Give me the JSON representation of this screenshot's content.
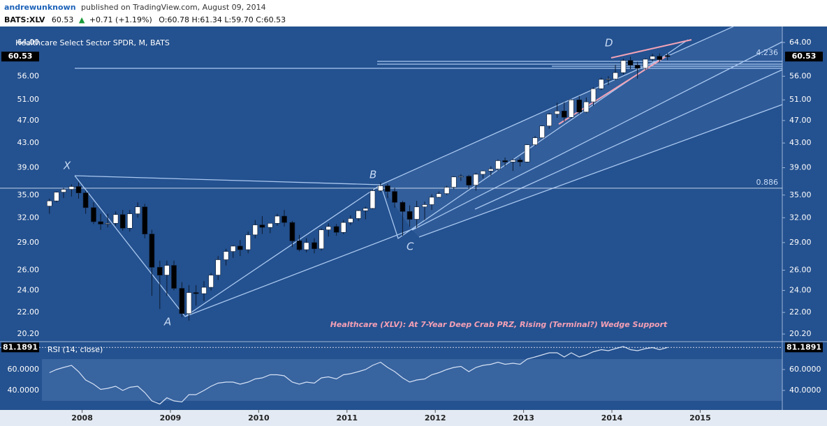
{
  "header": {
    "author": "andrewunknown",
    "published": "published on TradingView.com, August 09, 2014",
    "symbol": "BATS:XLV",
    "last": "60.53",
    "arrow": "▲",
    "change": "+0.71 (+1.19%)",
    "ohlc": "O:60.78 H:61.34 L:59.70 C:60.53"
  },
  "chart_data": [
    {
      "type": "candlestick",
      "title": "Healthcare Select Sector SPDR, M, BATS",
      "annotation": "Healthcare (XLV): At 7-Year Deep Crab PRZ, Rising (Terminal?) Wedge Support",
      "pattern_labels": [
        "X",
        "A",
        "B",
        "C",
        "D"
      ],
      "log_scale": true,
      "up_color": "#ffffff",
      "down_color": "#000000",
      "xlim": [
        2007.07,
        2015.93
      ],
      "xticks": [
        2008,
        2009,
        2010,
        2011,
        2012,
        2013,
        2014,
        2015
      ],
      "ylim": [
        19.6,
        67.8
      ],
      "yticks": [
        {
          "value": 64,
          "label": "64.00"
        },
        {
          "value": 56,
          "label": "56.00"
        },
        {
          "value": 51,
          "label": "51.00"
        },
        {
          "value": 47,
          "label": "47.00"
        },
        {
          "value": 43,
          "label": "43.00"
        },
        {
          "value": 39,
          "label": "39.00"
        },
        {
          "value": 35,
          "label": "35.00"
        },
        {
          "value": 32,
          "label": "32.00"
        },
        {
          "value": 29,
          "label": "29.00"
        },
        {
          "value": 26,
          "label": "26.00"
        },
        {
          "value": 24,
          "label": "24.00"
        },
        {
          "value": 22,
          "label": "22.00"
        },
        {
          "value": 20.2,
          "label": "20.20"
        }
      ],
      "fib_levels": [
        {
          "value": 59.4,
          "label": "4.236"
        },
        {
          "value": 35.96,
          "label": "0.886"
        }
      ],
      "x": [
        2007.63,
        2007.71,
        2007.79,
        2007.88,
        2007.96,
        2008.04,
        2008.13,
        2008.21,
        2008.29,
        2008.38,
        2008.46,
        2008.54,
        2008.63,
        2008.71,
        2008.79,
        2008.88,
        2008.96,
        2009.04,
        2009.13,
        2009.21,
        2009.29,
        2009.38,
        2009.46,
        2009.54,
        2009.63,
        2009.71,
        2009.79,
        2009.88,
        2009.96,
        2010.04,
        2010.13,
        2010.21,
        2010.29,
        2010.38,
        2010.46,
        2010.54,
        2010.63,
        2010.71,
        2010.79,
        2010.88,
        2010.96,
        2011.04,
        2011.13,
        2011.21,
        2011.29,
        2011.38,
        2011.46,
        2011.54,
        2011.63,
        2011.71,
        2011.79,
        2011.88,
        2011.96,
        2012.04,
        2012.13,
        2012.21,
        2012.29,
        2012.38,
        2012.46,
        2012.54,
        2012.63,
        2012.71,
        2012.79,
        2012.88,
        2012.96,
        2013.04,
        2013.13,
        2013.21,
        2013.29,
        2013.38,
        2013.46,
        2013.54,
        2013.63,
        2013.71,
        2013.79,
        2013.88,
        2013.96,
        2014.04,
        2014.13,
        2014.21,
        2014.29,
        2014.38,
        2014.46,
        2014.54,
        2014.63
      ],
      "open": [
        33.5,
        34.2,
        35.4,
        35.8,
        36.2,
        35.3,
        33.3,
        31.5,
        31.2,
        31.3,
        32.4,
        30.7,
        32.5,
        33.4,
        30,
        26.3,
        25.5,
        26.5,
        24.2,
        21.9,
        23.8,
        23.7,
        24.3,
        25.5,
        27.1,
        28,
        28.6,
        28.2,
        29.9,
        31.1,
        30.8,
        31.3,
        32.2,
        31.4,
        29.2,
        28.2,
        29,
        28.3,
        30.5,
        30.9,
        30.2,
        31.4,
        31.9,
        32.9,
        33.2,
        35.6,
        36.3,
        35.5,
        34,
        32.8,
        31.8,
        33.4,
        33.7,
        34.7,
        35.2,
        36.1,
        37.6,
        37.7,
        36.4,
        38,
        38.5,
        38.8,
        40.1,
        39.9,
        40.2,
        39.9,
        42.7,
        43.9,
        46,
        48.2,
        48.8,
        47.6,
        51,
        48.6,
        50.6,
        53.3,
        55.3,
        55.4,
        56.8,
        59.6,
        58.5,
        57.8,
        59.9,
        60.6,
        60.78
      ],
      "high": [
        34.5,
        35.5,
        36,
        36.5,
        36.8,
        35.6,
        34,
        32.5,
        32.5,
        32.8,
        33,
        33,
        34,
        33.8,
        30.5,
        27,
        27,
        27,
        24.8,
        24.5,
        24.5,
        24.9,
        25.7,
        27.5,
        28.3,
        28.7,
        29.3,
        30.3,
        31.7,
        32.2,
        31.3,
        32.5,
        33,
        31.6,
        29.9,
        29.5,
        29.5,
        30.7,
        31.3,
        31.2,
        31.7,
        32.3,
        33,
        33.4,
        35.8,
        36.8,
        36.6,
        36,
        34.2,
        33.6,
        34.2,
        34.1,
        35.1,
        35.5,
        36.3,
        37.7,
        38,
        37.9,
        38.2,
        38.6,
        39.2,
        40.3,
        40.6,
        40.4,
        40.6,
        42.8,
        44.2,
        46.1,
        48.4,
        50.4,
        50.5,
        51.2,
        51.8,
        51.5,
        53.6,
        55.7,
        56,
        58.6,
        60,
        60.5,
        59.3,
        60.1,
        61.2,
        61.3,
        61.34
      ],
      "low": [
        32.5,
        34,
        34.6,
        34.8,
        34.5,
        32.5,
        31.2,
        30.5,
        30.8,
        31,
        30.4,
        30.3,
        32,
        29.5,
        23.5,
        22.3,
        23.5,
        24,
        21.6,
        21.3,
        22.6,
        23,
        24,
        25,
        26.5,
        27.3,
        27.5,
        27.8,
        29.5,
        30,
        30.1,
        31,
        30.9,
        28.5,
        28,
        27.9,
        27.8,
        28.1,
        29.7,
        29.8,
        30,
        31.1,
        31.6,
        31.8,
        33.1,
        35.4,
        34.6,
        33.3,
        29.8,
        30.9,
        30.7,
        31.7,
        33,
        34.6,
        35,
        35.8,
        37,
        35.8,
        35.6,
        37.4,
        37.8,
        38.5,
        39.2,
        38.5,
        39.2,
        39.8,
        42.5,
        43.8,
        45.5,
        47.5,
        46.8,
        47.4,
        48.2,
        48.4,
        49.8,
        53,
        54.1,
        55.1,
        56.4,
        57.6,
        55.5,
        57.4,
        59.4,
        59.3,
        59.7
      ],
      "close": [
        34.2,
        35.4,
        35.8,
        36.2,
        35.3,
        33.3,
        31.5,
        31.2,
        31.3,
        32.4,
        30.7,
        32.5,
        33.4,
        30,
        26.3,
        25.5,
        26.5,
        24.2,
        21.9,
        23.8,
        23.7,
        24.3,
        25.5,
        27.1,
        28,
        28.6,
        28.2,
        29.9,
        31.1,
        30.8,
        31.3,
        32.2,
        31.4,
        29.2,
        28.2,
        29,
        28.3,
        30.5,
        30.9,
        30.2,
        31.4,
        31.9,
        32.9,
        33.2,
        35.6,
        36.3,
        35.5,
        34,
        32.8,
        31.8,
        33.4,
        33.7,
        34.7,
        35.2,
        36.1,
        37.6,
        37.7,
        36.4,
        38,
        38.5,
        38.8,
        40.1,
        39.9,
        40.2,
        39.9,
        42.7,
        43.9,
        46,
        48.2,
        48.8,
        47.6,
        51,
        48.6,
        50.6,
        53.3,
        55.3,
        55.4,
        56.8,
        59.6,
        58.5,
        57.8,
        59.9,
        60.6,
        59.8,
        60.53
      ]
    },
    {
      "type": "line",
      "title": "RSI (14, close)",
      "color": "#d6e2f5",
      "ylim": [
        21.3,
        86.7
      ],
      "yticks": [
        {
          "value": 60,
          "label": "60.0000"
        },
        {
          "value": 40,
          "label": "40.0000"
        }
      ],
      "band": [
        30,
        70
      ],
      "values": [
        57,
        60,
        62,
        64,
        58,
        50,
        46,
        41,
        42,
        44,
        40,
        43,
        44,
        38,
        30,
        27,
        33,
        30,
        29,
        36,
        36,
        40,
        44,
        47,
        48,
        48,
        46,
        48,
        51,
        52,
        55,
        55,
        54,
        48,
        46,
        48,
        47,
        52,
        53,
        51,
        55,
        56,
        58,
        60,
        64,
        67,
        62,
        58,
        52,
        48,
        50,
        51,
        55,
        57,
        60,
        62,
        63,
        58,
        62,
        64,
        65,
        67,
        65,
        66,
        65,
        70,
        72,
        74,
        76,
        76,
        72,
        76,
        72,
        74,
        77,
        79,
        78,
        80,
        82,
        79,
        78,
        80,
        81,
        79,
        81.1891
      ]
    }
  ]
}
